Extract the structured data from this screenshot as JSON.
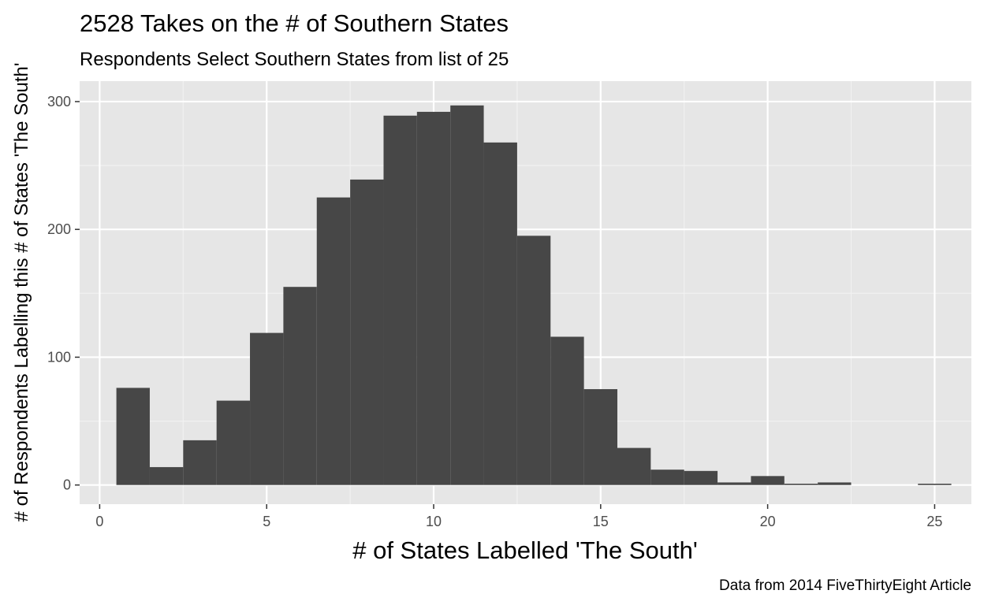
{
  "chart_data": {
    "type": "bar",
    "subtype": "histogram",
    "title": "2528 Takes on the # of Southern States",
    "subtitle": "Respondents Select Southern States from list of 25",
    "xlabel": "# of States Labelled 'The South'",
    "ylabel": "# of Respondents Labelling this # of States 'The South'",
    "caption": "Data from 2014 FiveThirtyEight Article",
    "xlim": [
      -0.6,
      26.1
    ],
    "ylim": [
      -15,
      316
    ],
    "x_ticks": [
      0,
      5,
      10,
      15,
      20,
      25
    ],
    "y_ticks": [
      0,
      100,
      200,
      300
    ],
    "bin_width": 1,
    "bins": [
      {
        "x": 1,
        "count": 76
      },
      {
        "x": 2,
        "count": 14
      },
      {
        "x": 3,
        "count": 35
      },
      {
        "x": 4,
        "count": 66
      },
      {
        "x": 5,
        "count": 119
      },
      {
        "x": 6,
        "count": 155
      },
      {
        "x": 7,
        "count": 225
      },
      {
        "x": 8,
        "count": 239
      },
      {
        "x": 9,
        "count": 289
      },
      {
        "x": 10,
        "count": 292
      },
      {
        "x": 11,
        "count": 297
      },
      {
        "x": 12,
        "count": 268
      },
      {
        "x": 13,
        "count": 195
      },
      {
        "x": 14,
        "count": 116
      },
      {
        "x": 15,
        "count": 75
      },
      {
        "x": 16,
        "count": 29
      },
      {
        "x": 17,
        "count": 12
      },
      {
        "x": 18,
        "count": 11
      },
      {
        "x": 19,
        "count": 2
      },
      {
        "x": 20,
        "count": 7
      },
      {
        "x": 21,
        "count": 1
      },
      {
        "x": 22,
        "count": 2
      },
      {
        "x": 23,
        "count": 0
      },
      {
        "x": 24,
        "count": 0
      },
      {
        "x": 25,
        "count": 1
      }
    ],
    "grid": true,
    "colors": {
      "bar": "#474747",
      "panel": "#e6e6e6",
      "grid_major": "#ffffff",
      "grid_minor": "#f2f2f2"
    }
  }
}
